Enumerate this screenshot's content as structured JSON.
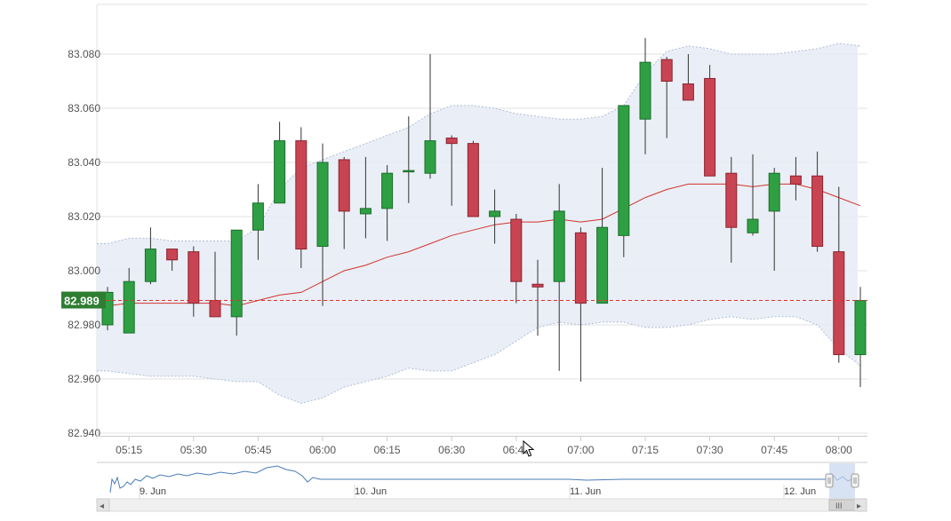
{
  "chart_data": {
    "type": "candlestick",
    "y_ticks": [
      "83.080",
      "83.060",
      "83.040",
      "83.020",
      "83.000",
      "82.980",
      "82.960",
      "82.940"
    ],
    "y_tick_values": [
      83.08,
      83.06,
      83.04,
      83.02,
      83.0,
      82.98,
      82.96,
      82.94
    ],
    "ylim": [
      82.94,
      83.1
    ],
    "x_ticks": [
      "05:15",
      "05:30",
      "05:45",
      "06:00",
      "06:15",
      "06:30",
      "06:45",
      "07:00",
      "07:15",
      "07:30",
      "07:45",
      "08:00"
    ],
    "grid": true,
    "last_price": {
      "label": "82.989",
      "value": 82.989
    },
    "candles": [
      {
        "time": "05:10",
        "open": 82.98,
        "high": 82.994,
        "low": 82.978,
        "close": 82.992
      },
      {
        "time": "05:15",
        "open": 82.977,
        "high": 83.001,
        "low": 82.977,
        "close": 82.996
      },
      {
        "time": "05:20",
        "open": 82.996,
        "high": 83.016,
        "low": 82.995,
        "close": 83.008
      },
      {
        "time": "05:25",
        "open": 83.008,
        "high": 83.008,
        "low": 83.0,
        "close": 83.004
      },
      {
        "time": "05:30",
        "open": 83.007,
        "high": 83.009,
        "low": 82.983,
        "close": 82.988
      },
      {
        "time": "05:35",
        "open": 82.989,
        "high": 83.007,
        "low": 82.983,
        "close": 82.983
      },
      {
        "time": "05:40",
        "open": 82.983,
        "high": 83.015,
        "low": 82.976,
        "close": 83.015
      },
      {
        "time": "05:45",
        "open": 83.015,
        "high": 83.032,
        "low": 83.004,
        "close": 83.025
      },
      {
        "time": "05:50",
        "open": 83.025,
        "high": 83.055,
        "low": 83.025,
        "close": 83.048
      },
      {
        "time": "05:55",
        "open": 83.048,
        "high": 83.053,
        "low": 83.001,
        "close": 83.008
      },
      {
        "time": "06:00",
        "open": 83.009,
        "high": 83.047,
        "low": 82.987,
        "close": 83.04
      },
      {
        "time": "06:05",
        "open": 83.041,
        "high": 83.042,
        "low": 83.008,
        "close": 83.022
      },
      {
        "time": "06:10",
        "open": 83.021,
        "high": 83.042,
        "low": 83.012,
        "close": 83.023
      },
      {
        "time": "06:15",
        "open": 83.023,
        "high": 83.039,
        "low": 83.011,
        "close": 83.036
      },
      {
        "time": "06:20",
        "open": 83.037,
        "high": 83.057,
        "low": 83.025,
        "close": 83.037
      },
      {
        "time": "06:25",
        "open": 83.036,
        "high": 83.08,
        "low": 83.034,
        "close": 83.048
      },
      {
        "time": "06:30",
        "open": 83.049,
        "high": 83.05,
        "low": 83.024,
        "close": 83.047
      },
      {
        "time": "06:35",
        "open": 83.047,
        "high": 83.048,
        "low": 83.02,
        "close": 83.02
      },
      {
        "time": "06:40",
        "open": 83.02,
        "high": 83.03,
        "low": 83.01,
        "close": 83.022
      },
      {
        "time": "06:45",
        "open": 83.019,
        "high": 83.021,
        "low": 82.988,
        "close": 82.996
      },
      {
        "time": "06:50",
        "open": 82.995,
        "high": 83.004,
        "low": 82.976,
        "close": 82.994
      },
      {
        "time": "06:55",
        "open": 82.996,
        "high": 83.032,
        "low": 82.963,
        "close": 83.022
      },
      {
        "time": "07:00",
        "open": 83.014,
        "high": 83.016,
        "low": 82.959,
        "close": 82.988
      },
      {
        "time": "07:05",
        "open": 82.988,
        "high": 83.038,
        "low": 82.988,
        "close": 83.016
      },
      {
        "time": "07:10",
        "open": 83.013,
        "high": 83.061,
        "low": 83.005,
        "close": 83.061
      },
      {
        "time": "07:15",
        "open": 83.056,
        "high": 83.086,
        "low": 83.043,
        "close": 83.077
      },
      {
        "time": "07:20",
        "open": 83.078,
        "high": 83.079,
        "low": 83.049,
        "close": 83.07
      },
      {
        "time": "07:25",
        "open": 83.069,
        "high": 83.08,
        "low": 83.063,
        "close": 83.063
      },
      {
        "time": "07:30",
        "open": 83.071,
        "high": 83.076,
        "low": 83.035,
        "close": 83.035
      },
      {
        "time": "07:35",
        "open": 83.036,
        "high": 83.042,
        "low": 83.003,
        "close": 83.016
      },
      {
        "time": "07:40",
        "open": 83.014,
        "high": 83.043,
        "low": 83.013,
        "close": 83.019
      },
      {
        "time": "07:45",
        "open": 83.022,
        "high": 83.038,
        "low": 83.0,
        "close": 83.036
      },
      {
        "time": "07:50",
        "open": 83.035,
        "high": 83.042,
        "low": 83.026,
        "close": 83.032
      },
      {
        "time": "07:55",
        "open": 83.035,
        "high": 83.044,
        "low": 83.007,
        "close": 83.009
      },
      {
        "time": "08:00",
        "open": 83.007,
        "high": 83.031,
        "low": 82.966,
        "close": 82.969
      },
      {
        "time": "08:05",
        "open": 82.969,
        "high": 82.994,
        "low": 82.957,
        "close": 82.989
      }
    ],
    "moving_average": [
      82.987,
      82.988,
      82.988,
      82.988,
      82.988,
      82.988,
      82.987,
      82.989,
      82.991,
      82.992,
      82.996,
      83.0,
      83.002,
      83.005,
      83.007,
      83.01,
      83.013,
      83.015,
      83.017,
      83.018,
      83.018,
      83.019,
      83.018,
      83.019,
      83.023,
      83.027,
      83.03,
      83.032,
      83.032,
      83.032,
      83.031,
      83.032,
      83.032,
      83.03,
      83.027,
      83.024
    ],
    "bollinger_upper": [
      83.01,
      83.012,
      83.012,
      83.011,
      83.011,
      83.011,
      83.011,
      83.016,
      83.03,
      83.038,
      83.041,
      83.044,
      83.047,
      83.05,
      83.053,
      83.058,
      83.061,
      83.061,
      83.06,
      83.058,
      83.057,
      83.056,
      83.056,
      83.057,
      83.061,
      83.073,
      83.081,
      83.083,
      83.082,
      83.08,
      83.08,
      83.08,
      83.081,
      83.082,
      83.084,
      83.083
    ],
    "bollinger_lower": [
      82.963,
      82.962,
      82.961,
      82.961,
      82.961,
      82.96,
      82.959,
      82.959,
      82.954,
      82.951,
      82.953,
      82.957,
      82.959,
      82.961,
      82.964,
      82.963,
      82.963,
      82.966,
      82.969,
      82.974,
      82.979,
      82.981,
      82.98,
      82.981,
      82.981,
      82.979,
      82.979,
      82.98,
      82.982,
      82.983,
      82.982,
      82.983,
      82.983,
      82.98,
      82.971,
      82.965
    ]
  },
  "navigator": {
    "labels": [
      "9. Jun",
      "10. Jun",
      "11. Jun",
      "12. Jun"
    ],
    "scroll_thumb": "III",
    "left_arrow": "◂",
    "right_arrow": "▸"
  },
  "colors": {
    "up": "#2ea043",
    "up_border": "#1b6e2b",
    "down": "#c94452",
    "down_border": "#8a2330",
    "band_fill": "#e6ebf5",
    "band_line": "#b0bfd8",
    "ma_line": "#d0342c",
    "last_price_line": "#e0312f",
    "last_price_bg": "#2e7d32",
    "grid": "#e2e2e2"
  }
}
